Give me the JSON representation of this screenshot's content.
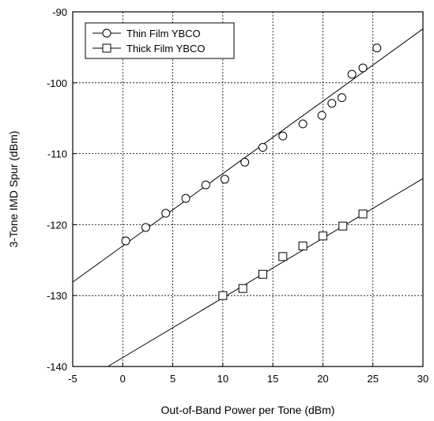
{
  "chart_data": {
    "type": "scatter",
    "xlabel": "Out-of-Band Power per Tone (dBm)",
    "ylabel": "3-Tone IMD Spur (dBm)",
    "xlim": [
      -5,
      30
    ],
    "ylim": [
      -140,
      -90
    ],
    "xticks": [
      -5,
      0,
      5,
      10,
      15,
      20,
      25,
      30
    ],
    "yticks": [
      -140,
      -130,
      -120,
      -110,
      -100,
      -90
    ],
    "grid": true,
    "legend_position": "top-left",
    "series": [
      {
        "name": "Thin Film YBCO",
        "marker": "circle",
        "x": [
          0.3,
          2.3,
          4.3,
          6.3,
          8.3,
          10.2,
          12.2,
          14.0,
          16.0,
          18.0,
          19.9,
          20.9,
          21.9,
          22.9,
          24.0,
          25.4
        ],
        "y": [
          -122.3,
          -120.4,
          -118.4,
          -116.3,
          -114.4,
          -113.6,
          -111.2,
          -109.1,
          -107.5,
          -105.8,
          -104.6,
          -102.9,
          -102.1,
          -98.8,
          -97.9,
          -95.1
        ],
        "fit_line": {
          "x": [
            -5,
            30
          ],
          "y": [
            -128.1,
            -92.4
          ]
        }
      },
      {
        "name": "Thick Film YBCO",
        "marker": "square",
        "x": [
          10.0,
          12.0,
          14.0,
          16.0,
          18.0,
          20.0,
          22.0,
          24.0
        ],
        "y": [
          -130.0,
          -129.0,
          -127.0,
          -124.5,
          -123.0,
          -121.6,
          -120.2,
          -118.5
        ],
        "fit_line": {
          "x": [
            -1.5,
            30
          ],
          "y": [
            -140.0,
            -113.5
          ]
        }
      }
    ]
  }
}
